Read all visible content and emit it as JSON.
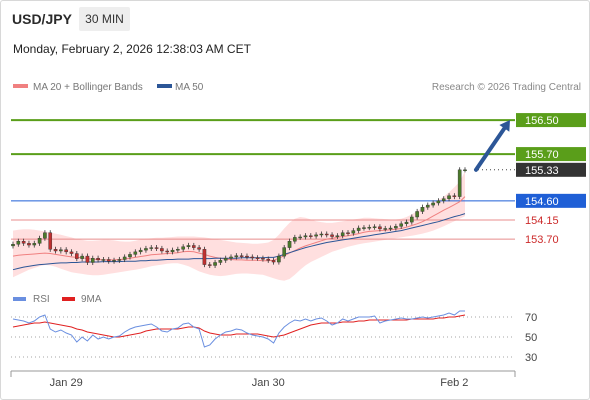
{
  "header": {
    "symbol": "USD/JPY",
    "timeframe": "30 MIN",
    "datetime": "Monday, February 2, 2026 12:38:03 AM CET"
  },
  "colors": {
    "resistance": "#5a9e1a",
    "support": "#cc2a2a",
    "pivot": "#1f5fd6",
    "last_price": "#333333",
    "bollinger_band": "#ffd9d9",
    "ma20": "#f08080",
    "ma50": "#2c5697",
    "rsi": "#6a8fe0",
    "rsi_ma": "#e02020",
    "candle_up": "#4a7a2a",
    "candle_down": "#c03030"
  },
  "chart_data": [
    {
      "type": "candlestick",
      "legend": [
        {
          "label": "MA 20 + Bollinger Bands",
          "color": "#f08080"
        },
        {
          "label": "MA 50",
          "color": "#2c5697"
        }
      ],
      "watermark": "Research © 2026 Trading Central",
      "x_ticks": [
        {
          "label": "Jan 29",
          "index": 10
        },
        {
          "label": "Jan 30",
          "index": 48
        },
        {
          "label": "Feb 2",
          "index": 83
        }
      ],
      "ylim": [
        152.62,
        157.09
      ],
      "levels": [
        {
          "label": "156.50",
          "value": 156.5,
          "kind": "resistance"
        },
        {
          "label": "155.70",
          "value": 155.7,
          "kind": "resistance"
        },
        {
          "label": "155.33",
          "value": 155.33,
          "kind": "last_price"
        },
        {
          "label": "154.60",
          "value": 154.6,
          "kind": "pivot"
        },
        {
          "label": "154.15",
          "value": 154.15,
          "kind": "support"
        },
        {
          "label": "153.70",
          "value": 153.7,
          "kind": "support"
        }
      ],
      "forecast_arrow": {
        "from": 155.33,
        "to": 156.5
      },
      "close": [
        153.58,
        153.65,
        153.6,
        153.56,
        153.6,
        153.72,
        153.85,
        153.46,
        153.42,
        153.45,
        153.4,
        153.36,
        153.24,
        153.3,
        153.15,
        153.25,
        153.21,
        153.22,
        153.18,
        153.2,
        153.22,
        153.28,
        153.34,
        153.4,
        153.44,
        153.48,
        153.5,
        153.48,
        153.42,
        153.4,
        153.44,
        153.46,
        153.52,
        153.55,
        153.5,
        153.46,
        153.1,
        153.08,
        153.15,
        153.2,
        153.25,
        153.28,
        153.31,
        153.3,
        153.28,
        153.26,
        153.25,
        153.23,
        153.2,
        153.16,
        153.3,
        153.5,
        153.65,
        153.74,
        153.75,
        153.78,
        153.77,
        153.8,
        153.82,
        153.8,
        153.76,
        153.78,
        153.85,
        153.84,
        153.9,
        153.96,
        153.97,
        153.98,
        153.99,
        153.94,
        153.95,
        153.96,
        154.0,
        154.06,
        154.1,
        154.22,
        154.35,
        154.45,
        154.5,
        154.55,
        154.6,
        154.65,
        154.72,
        154.7,
        155.33,
        155.33
      ],
      "ma20": [
        153.3,
        153.32,
        153.33,
        153.34,
        153.35,
        153.36,
        153.37,
        153.36,
        153.34,
        153.32,
        153.3,
        153.28,
        153.27,
        153.26,
        153.24,
        153.23,
        153.22,
        153.21,
        153.21,
        153.21,
        153.22,
        153.23,
        153.25,
        153.27,
        153.29,
        153.31,
        153.33,
        153.34,
        153.35,
        153.36,
        153.37,
        153.38,
        153.4,
        153.41,
        153.4,
        153.37,
        153.34,
        153.3,
        153.27,
        153.25,
        153.23,
        153.22,
        153.21,
        153.21,
        153.2,
        153.2,
        153.2,
        153.19,
        153.19,
        153.2,
        153.25,
        153.31,
        153.37,
        153.43,
        153.49,
        153.54,
        153.58,
        153.62,
        153.66,
        153.7,
        153.72,
        153.74,
        153.76,
        153.78,
        153.8,
        153.83,
        153.86,
        153.88,
        153.89,
        153.9,
        153.91,
        153.92,
        153.93,
        153.95,
        153.98,
        154.02,
        154.06,
        154.11,
        154.17,
        154.24,
        154.31,
        154.38,
        154.44,
        154.51,
        154.58,
        154.7
      ],
      "ma50": [
        152.98,
        153.01,
        153.04,
        153.06,
        153.08,
        153.1,
        153.11,
        153.12,
        153.13,
        153.14,
        153.14,
        153.15,
        153.15,
        153.16,
        153.16,
        153.16,
        153.16,
        153.17,
        153.17,
        153.17,
        153.17,
        153.18,
        153.18,
        153.18,
        153.19,
        153.19,
        153.2,
        153.2,
        153.21,
        153.22,
        153.22,
        153.23,
        153.23,
        153.23,
        153.24,
        153.24,
        153.24,
        153.24,
        153.25,
        153.25,
        153.25,
        153.25,
        153.25,
        153.26,
        153.26,
        153.26,
        153.26,
        153.26,
        153.27,
        153.27,
        153.3,
        153.34,
        153.38,
        153.42,
        153.46,
        153.5,
        153.53,
        153.56,
        153.59,
        153.62,
        153.64,
        153.66,
        153.68,
        153.7,
        153.72,
        153.74,
        153.76,
        153.78,
        153.8,
        153.82,
        153.84,
        153.86,
        153.88,
        153.9,
        153.93,
        153.96,
        153.99,
        154.02,
        154.05,
        154.08,
        154.11,
        154.15,
        154.19,
        154.23,
        154.26,
        154.3
      ],
      "bb_upper": [
        153.9,
        153.92,
        153.93,
        153.93,
        153.92,
        153.9,
        153.88,
        153.86,
        153.83,
        153.8,
        153.77,
        153.74,
        153.7,
        153.68,
        153.66,
        153.66,
        153.67,
        153.68,
        153.68,
        153.67,
        153.65,
        153.64,
        153.64,
        153.66,
        153.69,
        153.71,
        153.72,
        153.73,
        153.73,
        153.74,
        153.75,
        153.76,
        153.76,
        153.76,
        153.76,
        153.75,
        153.74,
        153.72,
        153.7,
        153.68,
        153.66,
        153.64,
        153.62,
        153.61,
        153.6,
        153.59,
        153.59,
        153.6,
        153.62,
        153.68,
        153.8,
        153.95,
        154.08,
        154.18,
        154.22,
        154.2,
        154.16,
        154.12,
        154.1,
        154.08,
        154.08,
        154.1,
        154.12,
        154.14,
        154.16,
        154.18,
        154.2,
        154.2,
        154.19,
        154.18,
        154.17,
        154.16,
        154.16,
        154.18,
        154.22,
        154.28,
        154.36,
        154.44,
        154.5,
        154.56,
        154.62,
        154.7,
        154.8,
        154.92,
        155.05,
        155.3
      ],
      "bb_lower": [
        152.8,
        152.86,
        152.92,
        152.98,
        153.02,
        153.06,
        153.09,
        153.08,
        153.05,
        153.0,
        152.96,
        152.92,
        152.9,
        152.88,
        152.86,
        152.85,
        152.85,
        152.86,
        152.88,
        152.9,
        152.92,
        152.94,
        152.96,
        152.98,
        153.0,
        153.03,
        153.06,
        153.08,
        153.1,
        153.12,
        153.13,
        153.13,
        153.1,
        153.06,
        153.0,
        152.94,
        152.9,
        152.86,
        152.84,
        152.83,
        152.84,
        152.86,
        152.88,
        152.89,
        152.89,
        152.88,
        152.87,
        152.86,
        152.82,
        152.78,
        152.74,
        152.72,
        152.76,
        152.86,
        152.98,
        153.08,
        153.16,
        153.22,
        153.28,
        153.34,
        153.4,
        153.44,
        153.48,
        153.52,
        153.55,
        153.58,
        153.6,
        153.62,
        153.64,
        153.66,
        153.68,
        153.7,
        153.72,
        153.74,
        153.76,
        153.78,
        153.8,
        153.83,
        153.86,
        153.9,
        153.95,
        154.0,
        154.06,
        154.12,
        154.18,
        154.24
      ]
    },
    {
      "type": "line",
      "legend": [
        {
          "label": "RSI",
          "color": "#6a8fe0"
        },
        {
          "label": "9MA",
          "color": "#e02020"
        }
      ],
      "yticks": [
        70,
        50,
        30
      ],
      "ylim": [
        20,
        80
      ],
      "rsi": [
        68,
        67,
        66,
        64,
        66,
        70,
        72,
        58,
        55,
        57,
        54,
        52,
        45,
        50,
        46,
        52,
        48,
        50,
        48,
        50,
        51,
        55,
        58,
        60,
        61,
        62,
        63,
        60,
        56,
        55,
        58,
        59,
        63,
        64,
        60,
        58,
        40,
        42,
        48,
        52,
        55,
        56,
        58,
        57,
        54,
        52,
        51,
        50,
        48,
        44,
        54,
        60,
        64,
        67,
        66,
        68,
        66,
        68,
        69,
        66,
        62,
        64,
        68,
        66,
        68,
        70,
        70,
        70,
        71,
        64,
        66,
        67,
        68,
        69,
        68,
        68,
        69,
        70,
        69,
        70,
        71,
        72,
        74,
        72,
        76,
        76
      ],
      "rsi_ma": [
        60,
        61,
        62,
        63,
        64,
        64,
        65,
        64,
        63,
        62,
        61,
        60,
        58,
        57,
        55,
        54,
        53,
        52,
        51,
        50,
        50,
        51,
        52,
        53,
        54,
        56,
        57,
        58,
        58,
        58,
        58,
        58,
        59,
        60,
        60,
        59,
        56,
        54,
        53,
        52,
        52,
        52,
        53,
        53,
        53,
        53,
        53,
        52,
        51,
        50,
        51,
        52,
        54,
        56,
        58,
        60,
        62,
        63,
        64,
        64,
        64,
        64,
        65,
        65,
        65,
        66,
        66,
        67,
        67,
        67,
        67,
        67,
        67,
        67,
        67,
        68,
        68,
        68,
        68,
        68,
        69,
        69,
        70,
        70,
        71,
        72
      ]
    }
  ]
}
